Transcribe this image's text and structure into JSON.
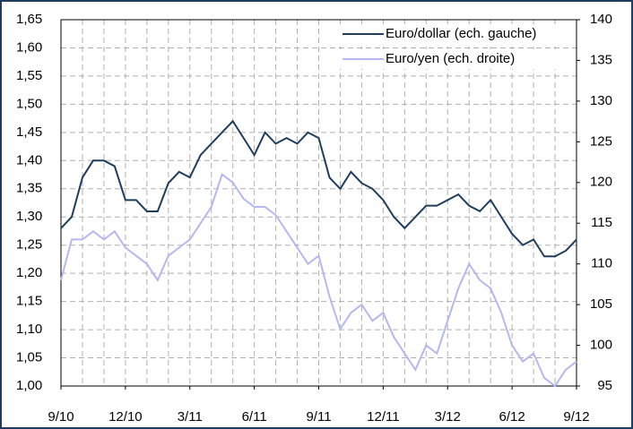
{
  "chart_data": {
    "type": "line",
    "x": [
      0,
      0.5,
      1,
      1.5,
      2,
      2.5,
      3,
      3.5,
      4,
      4.5,
      5,
      5.5,
      6,
      6.5,
      7,
      7.5,
      8,
      8.5,
      9,
      9.5,
      10,
      10.5,
      11,
      11.5,
      12,
      12.5,
      13,
      13.5,
      14,
      14.5,
      15,
      15.5,
      16,
      16.5,
      17,
      17.5,
      18,
      18.5,
      19,
      19.5,
      20,
      20.5,
      21,
      21.5,
      22,
      22.5,
      23,
      23.5,
      24
    ],
    "series": [
      {
        "name": "Euro/dollar (ech. gauche)",
        "color": "#1f3d5c",
        "values": [
          1.28,
          1.3,
          1.37,
          1.4,
          1.4,
          1.39,
          1.33,
          1.33,
          1.31,
          1.31,
          1.36,
          1.38,
          1.37,
          1.41,
          1.43,
          1.45,
          1.47,
          1.44,
          1.41,
          1.45,
          1.43,
          1.44,
          1.43,
          1.45,
          1.44,
          1.37,
          1.35,
          1.38,
          1.36,
          1.35,
          1.33,
          1.3,
          1.28,
          1.3,
          1.32,
          1.32,
          1.33,
          1.34,
          1.32,
          1.31,
          1.33,
          1.3,
          1.27,
          1.25,
          1.26,
          1.23,
          1.23,
          1.24,
          1.26
        ]
      },
      {
        "name": "Euro/yen (ech. droite)",
        "color": "#b4b8ef",
        "axis": "y2",
        "values": [
          108,
          113,
          113,
          114,
          113,
          114,
          112,
          111,
          110,
          108,
          111,
          112,
          113,
          115,
          117,
          121,
          120,
          118,
          117,
          117,
          116,
          114,
          112,
          110,
          111,
          106,
          102,
          104,
          105,
          103,
          104,
          101,
          99,
          97,
          100,
          99,
          103,
          107,
          110,
          108,
          107,
          104,
          100,
          98,
          99,
          96,
          95,
          97,
          98
        ]
      }
    ],
    "xlim": [
      0,
      24
    ],
    "xticks": [
      {
        "value": 0,
        "label": "9/10"
      },
      {
        "value": 3,
        "label": "12/10"
      },
      {
        "value": 6,
        "label": "3/11"
      },
      {
        "value": 9,
        "label": "6/11"
      },
      {
        "value": 12,
        "label": "9/11"
      },
      {
        "value": 15,
        "label": "12/11"
      },
      {
        "value": 18,
        "label": "3/12"
      },
      {
        "value": 21,
        "label": "6/12"
      },
      {
        "value": 24,
        "label": "9/12"
      }
    ],
    "xgrid": [
      1,
      2,
      3,
      4,
      5,
      6,
      7,
      8,
      9,
      10,
      11,
      12,
      13,
      14,
      15,
      16,
      17,
      18,
      19,
      20,
      21,
      22,
      23
    ],
    "ylim": [
      1.0,
      1.65
    ],
    "yticks": [
      {
        "value": 1.0,
        "label": "1,00"
      },
      {
        "value": 1.05,
        "label": "1,05"
      },
      {
        "value": 1.1,
        "label": "1,10"
      },
      {
        "value": 1.15,
        "label": "1,15"
      },
      {
        "value": 1.2,
        "label": "1,20"
      },
      {
        "value": 1.25,
        "label": "1,25"
      },
      {
        "value": 1.3,
        "label": "1,30"
      },
      {
        "value": 1.35,
        "label": "1,35"
      },
      {
        "value": 1.4,
        "label": "1,40"
      },
      {
        "value": 1.45,
        "label": "1,45"
      },
      {
        "value": 1.5,
        "label": "1,50"
      },
      {
        "value": 1.55,
        "label": "1,55"
      },
      {
        "value": 1.6,
        "label": "1,60"
      },
      {
        "value": 1.65,
        "label": "1,65"
      }
    ],
    "y2lim": [
      95,
      140
    ],
    "y2ticks": [
      95,
      100,
      105,
      110,
      115,
      120,
      125,
      130,
      135,
      140
    ],
    "grid": true,
    "legend": "top-right"
  }
}
